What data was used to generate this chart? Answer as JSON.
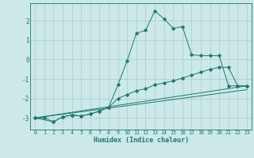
{
  "xlabel": "Humidex (Indice chaleur)",
  "bg_color": "#cce8e8",
  "grid_color": "#aacccc",
  "line_color": "#1a7a6e",
  "xlim": [
    -0.5,
    23.5
  ],
  "ylim": [
    -3.6,
    2.9
  ],
  "xticks": [
    0,
    1,
    2,
    3,
    4,
    5,
    6,
    7,
    8,
    9,
    10,
    11,
    12,
    13,
    14,
    15,
    16,
    17,
    18,
    19,
    20,
    21,
    22,
    23
  ],
  "yticks": [
    -3,
    -2,
    -1,
    0,
    1,
    2
  ],
  "series": {
    "main": {
      "x": [
        0,
        1,
        2,
        3,
        4,
        5,
        6,
        7,
        8,
        9,
        10,
        11,
        12,
        13,
        14,
        15,
        16,
        17,
        18,
        19,
        20,
        21,
        22,
        23
      ],
      "y": [
        -3.0,
        -3.0,
        -3.2,
        -2.95,
        -2.85,
        -2.9,
        -2.8,
        -2.65,
        -2.45,
        -1.3,
        -0.05,
        1.35,
        1.5,
        2.5,
        2.1,
        1.6,
        1.7,
        0.25,
        0.2,
        0.2,
        0.2,
        -1.35,
        -1.35,
        -1.35
      ]
    },
    "line1": {
      "x": [
        0,
        23
      ],
      "y": [
        -3.0,
        -1.35
      ]
    },
    "line2": {
      "x": [
        0,
        23
      ],
      "y": [
        -3.0,
        -1.55
      ]
    },
    "line3": {
      "x": [
        0,
        2,
        3,
        4,
        5,
        6,
        7,
        8,
        9,
        10,
        11,
        12,
        13,
        14,
        15,
        16,
        17,
        18,
        19,
        20,
        21,
        22,
        23
      ],
      "y": [
        -3.0,
        -3.2,
        -2.95,
        -2.85,
        -2.9,
        -2.8,
        -2.65,
        -2.45,
        -2.0,
        -1.8,
        -1.6,
        -1.5,
        -1.3,
        -1.2,
        -1.1,
        -0.95,
        -0.8,
        -0.65,
        -0.5,
        -0.4,
        -0.4,
        -1.35,
        -1.35
      ]
    }
  }
}
